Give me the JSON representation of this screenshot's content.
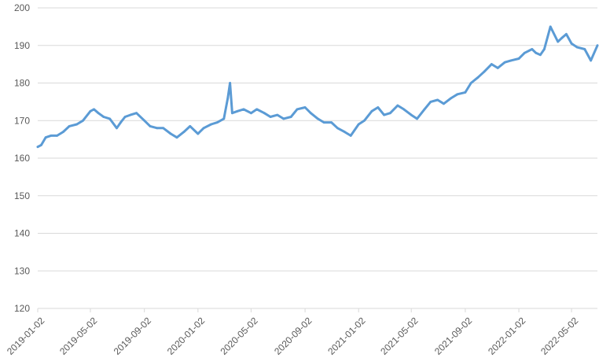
{
  "chart_data": {
    "type": "line",
    "title": "",
    "xlabel": "",
    "ylabel": "",
    "ylim": [
      120,
      200
    ],
    "yticks": [
      120,
      130,
      140,
      150,
      160,
      170,
      180,
      190,
      200
    ],
    "x_tick_labels": [
      "2019-01-02",
      "2019-05-02",
      "2019-09-02",
      "2020-01-02",
      "2020-05-02",
      "2020-09-02",
      "2021-01-02",
      "2021-05-02",
      "2021-09-02",
      "2022-01-02",
      "2022-05-02"
    ],
    "x_range": [
      "2019-01-02",
      "2022-06-30"
    ],
    "grid": "horizontal",
    "legend": "none",
    "line_color": "#5b9bd5",
    "series": [
      {
        "x": [
          "2019-01-02",
          "2019-01-10",
          "2019-01-20",
          "2019-02-01",
          "2019-02-15",
          "2019-03-01",
          "2019-03-15",
          "2019-04-01",
          "2019-04-15",
          "2019-05-02",
          "2019-05-10",
          "2019-05-20",
          "2019-06-01",
          "2019-06-15",
          "2019-07-01",
          "2019-07-10",
          "2019-07-20",
          "2019-08-01",
          "2019-08-15",
          "2019-09-02",
          "2019-09-15",
          "2019-10-01",
          "2019-10-15",
          "2019-11-01",
          "2019-11-15",
          "2019-12-01",
          "2019-12-15",
          "2020-01-02",
          "2020-01-15",
          "2020-02-01",
          "2020-02-15",
          "2020-03-01",
          "2020-03-10",
          "2020-03-15",
          "2020-03-20",
          "2020-04-01",
          "2020-04-15",
          "2020-05-02",
          "2020-05-15",
          "2020-06-01",
          "2020-06-15",
          "2020-07-01",
          "2020-07-15",
          "2020-08-01",
          "2020-08-15",
          "2020-09-02",
          "2020-09-15",
          "2020-10-01",
          "2020-10-15",
          "2020-11-01",
          "2020-11-15",
          "2020-12-01",
          "2020-12-15",
          "2021-01-02",
          "2021-01-15",
          "2021-02-01",
          "2021-02-15",
          "2021-03-01",
          "2021-03-15",
          "2021-04-01",
          "2021-04-15",
          "2021-05-02",
          "2021-05-15",
          "2021-06-01",
          "2021-06-15",
          "2021-07-01",
          "2021-07-15",
          "2021-08-01",
          "2021-08-15",
          "2021-09-02",
          "2021-09-15",
          "2021-10-01",
          "2021-10-15",
          "2021-11-01",
          "2021-11-15",
          "2021-12-01",
          "2021-12-15",
          "2022-01-02",
          "2022-01-15",
          "2022-02-01",
          "2022-02-10",
          "2022-02-20",
          "2022-03-01",
          "2022-03-15",
          "2022-04-01",
          "2022-04-10",
          "2022-04-20",
          "2022-05-02",
          "2022-05-15",
          "2022-06-01",
          "2022-06-15",
          "2022-06-30"
        ],
        "values": [
          163,
          163.5,
          165.5,
          166,
          166,
          167,
          168.5,
          169,
          170,
          172.5,
          173,
          172,
          171,
          170.5,
          168,
          169.5,
          171,
          171.5,
          172,
          170,
          168.5,
          168,
          168,
          166.5,
          165.5,
          167,
          168.5,
          166.5,
          168,
          169,
          169.5,
          170.5,
          176,
          180,
          172,
          172.5,
          173,
          172,
          173,
          172,
          171,
          171.5,
          170.5,
          171,
          173,
          173.5,
          172,
          170.5,
          169.5,
          169.5,
          168,
          167,
          166,
          169,
          170,
          172.5,
          173.5,
          171.5,
          172,
          174,
          173,
          171.5,
          170.5,
          173,
          175,
          175.5,
          174.5,
          176,
          177,
          177.5,
          180,
          181.5,
          183,
          185,
          184,
          185.5,
          186,
          186.5,
          188,
          189,
          188,
          187.5,
          189,
          195,
          191,
          192,
          193,
          190.5,
          189.5,
          189,
          186,
          190
        ]
      }
    ]
  }
}
